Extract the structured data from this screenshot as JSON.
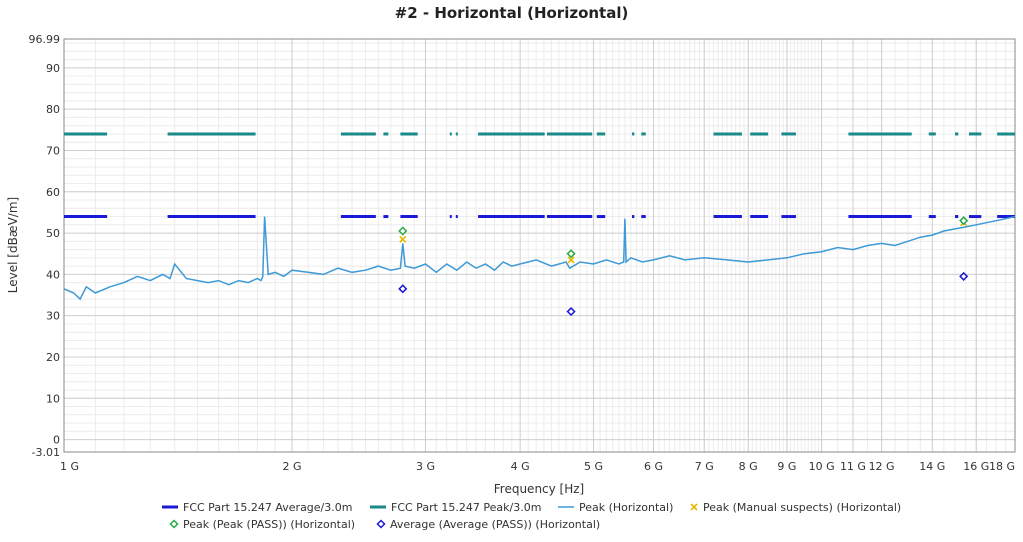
{
  "chart_data": {
    "type": "line",
    "title": "#2 - Horizontal (Horizontal)",
    "xlabel": "Frequency [Hz]",
    "ylabel": "Level [dBæV/m]",
    "x_scale": "log",
    "xlim": [
      1000000000,
      18000000000
    ],
    "ylim": [
      -3.01,
      96.99
    ],
    "grid": true,
    "x_ticks": [
      {
        "value": 1000000000,
        "label": "1 G"
      },
      {
        "value": 2000000000,
        "label": "2 G"
      },
      {
        "value": 3000000000,
        "label": "3 G"
      },
      {
        "value": 4000000000,
        "label": "4 G"
      },
      {
        "value": 5000000000,
        "label": "5 G"
      },
      {
        "value": 6000000000,
        "label": "6 G"
      },
      {
        "value": 7000000000,
        "label": "7 G"
      },
      {
        "value": 8000000000,
        "label": "8 G"
      },
      {
        "value": 9000000000,
        "label": "9 G"
      },
      {
        "value": 10000000000,
        "label": "10 G"
      },
      {
        "value": 11000000000,
        "label": "11 G"
      },
      {
        "value": 12000000000,
        "label": "12 G"
      },
      {
        "value": 14000000000,
        "label": "14 G"
      },
      {
        "value": 16000000000,
        "label": "16 G"
      },
      {
        "value": 18000000000,
        "label": "18 G"
      }
    ],
    "y_ticks": [
      {
        "value": -3.01,
        "label": "-3.01"
      },
      {
        "value": 0,
        "label": "0"
      },
      {
        "value": 10,
        "label": "10"
      },
      {
        "value": 20,
        "label": "20"
      },
      {
        "value": 30,
        "label": "30"
      },
      {
        "value": 40,
        "label": "40"
      },
      {
        "value": 50,
        "label": "50"
      },
      {
        "value": 60,
        "label": "60"
      },
      {
        "value": 70,
        "label": "70"
      },
      {
        "value": 80,
        "label": "80"
      },
      {
        "value": 90,
        "label": "90"
      },
      {
        "value": 96.99,
        "label": "96.99"
      }
    ],
    "limit_lines": [
      {
        "name": "FCC Part 15.247 Average/3.0m",
        "color": "#1a1ad6",
        "level": 54,
        "segments": [
          [
            1000000000,
            1140000000
          ],
          [
            1370000000,
            1790000000
          ],
          [
            2320000000,
            2580000000
          ],
          [
            2640000000,
            2680000000
          ],
          [
            2780000000,
            2930000000
          ],
          [
            3230000000,
            3250000000
          ],
          [
            3290000000,
            3310000000
          ],
          [
            3520000000,
            4310000000
          ],
          [
            4340000000,
            4980000000
          ],
          [
            5050000000,
            5180000000
          ],
          [
            5620000000,
            5660000000
          ],
          [
            5780000000,
            5860000000
          ],
          [
            7200000000,
            7850000000
          ],
          [
            8050000000,
            8500000000
          ],
          [
            8850000000,
            9250000000
          ],
          [
            10850000000,
            13150000000
          ],
          [
            13850000000,
            14150000000
          ],
          [
            15000000000,
            15150000000
          ],
          [
            15650000000,
            16250000000
          ],
          [
            17050000000,
            18000000000
          ]
        ]
      },
      {
        "name": "FCC Part 15.247 Peak/3.0m",
        "color": "#1a8a8a",
        "level": 74,
        "segments": [
          [
            1000000000,
            1140000000
          ],
          [
            1370000000,
            1790000000
          ],
          [
            2320000000,
            2580000000
          ],
          [
            2640000000,
            2680000000
          ],
          [
            2780000000,
            2930000000
          ],
          [
            3230000000,
            3250000000
          ],
          [
            3290000000,
            3310000000
          ],
          [
            3520000000,
            4310000000
          ],
          [
            4340000000,
            4980000000
          ],
          [
            5050000000,
            5180000000
          ],
          [
            5620000000,
            5660000000
          ],
          [
            5780000000,
            5860000000
          ],
          [
            7200000000,
            7850000000
          ],
          [
            8050000000,
            8500000000
          ],
          [
            8850000000,
            9250000000
          ],
          [
            10850000000,
            13150000000
          ],
          [
            13850000000,
            14150000000
          ],
          [
            15000000000,
            15150000000
          ],
          [
            15650000000,
            16250000000
          ],
          [
            17050000000,
            18000000000
          ]
        ]
      }
    ],
    "series": [
      {
        "name": "Peak (Horizontal)",
        "color": "#3d9ad6",
        "x": [
          1000000000,
          1030000000,
          1050000000,
          1070000000,
          1100000000,
          1150000000,
          1200000000,
          1250000000,
          1300000000,
          1350000000,
          1380000000,
          1400000000,
          1450000000,
          1500000000,
          1550000000,
          1600000000,
          1650000000,
          1700000000,
          1750000000,
          1800000000,
          1820000000,
          1830000000,
          1840000000,
          1860000000,
          1900000000,
          1950000000,
          2000000000,
          2100000000,
          2200000000,
          2300000000,
          2400000000,
          2500000000,
          2600000000,
          2700000000,
          2780000000,
          2800000000,
          2820000000,
          2900000000,
          3000000000,
          3100000000,
          3200000000,
          3300000000,
          3400000000,
          3500000000,
          3600000000,
          3700000000,
          3800000000,
          3900000000,
          4000000000,
          4200000000,
          4400000000,
          4600000000,
          4650000000,
          4800000000,
          5000000000,
          5200000000,
          5400000000,
          5480000000,
          5500000000,
          5520000000,
          5600000000,
          5800000000,
          6000000000,
          6300000000,
          6600000000,
          7000000000,
          7500000000,
          8000000000,
          8500000000,
          9000000000,
          9500000000,
          10000000000,
          10500000000,
          11000000000,
          11500000000,
          12000000000,
          12500000000,
          13000000000,
          13500000000,
          14000000000,
          14500000000,
          15000000000,
          15500000000,
          16000000000,
          16500000000,
          17000000000,
          17500000000,
          18000000000
        ],
        "values": [
          36.5,
          35.5,
          34.0,
          37.0,
          35.5,
          37.0,
          38.0,
          39.5,
          38.5,
          40.0,
          39.0,
          42.5,
          39.0,
          38.5,
          38.0,
          38.5,
          37.5,
          38.5,
          38.0,
          39.0,
          38.5,
          39.5,
          54.0,
          40.0,
          40.5,
          39.5,
          41.0,
          40.5,
          40.0,
          41.5,
          40.5,
          41.0,
          42.0,
          41.0,
          41.5,
          47.5,
          42.0,
          41.5,
          42.5,
          40.5,
          42.5,
          41.0,
          43.0,
          41.5,
          42.5,
          41.0,
          43.0,
          42.0,
          42.5,
          43.5,
          42.0,
          43.0,
          41.5,
          43.0,
          42.5,
          43.5,
          42.5,
          43.0,
          53.5,
          43.0,
          44.0,
          43.0,
          43.5,
          44.5,
          43.5,
          44.0,
          43.5,
          43.0,
          43.5,
          44.0,
          45.0,
          45.5,
          46.5,
          46.0,
          47.0,
          47.5,
          47.0,
          48.0,
          49.0,
          49.5,
          50.5,
          51.0,
          51.5,
          52.0,
          52.5,
          53.0,
          53.5,
          54.0
        ]
      },
      {
        "name": "Peak (Manual suspects) (Horizontal)",
        "color": "#e8b800",
        "marker": "x",
        "x": [
          2800000000,
          4670000000,
          15400000000
        ],
        "values": [
          48.5,
          43.5,
          52.5
        ]
      },
      {
        "name": "Peak (Peak (PASS)) (Horizontal)",
        "color": "#27a845",
        "marker": "diamond",
        "x": [
          2800000000,
          4670000000,
          15400000000
        ],
        "values": [
          50.5,
          45.0,
          53.0
        ]
      },
      {
        "name": "Average (Average (PASS)) (Horizontal)",
        "color": "#1a1ad6",
        "marker": "diamond",
        "x": [
          2800000000,
          4670000000,
          15400000000
        ],
        "values": [
          36.5,
          31.0,
          39.5
        ]
      }
    ],
    "legend_position": "bottom"
  }
}
